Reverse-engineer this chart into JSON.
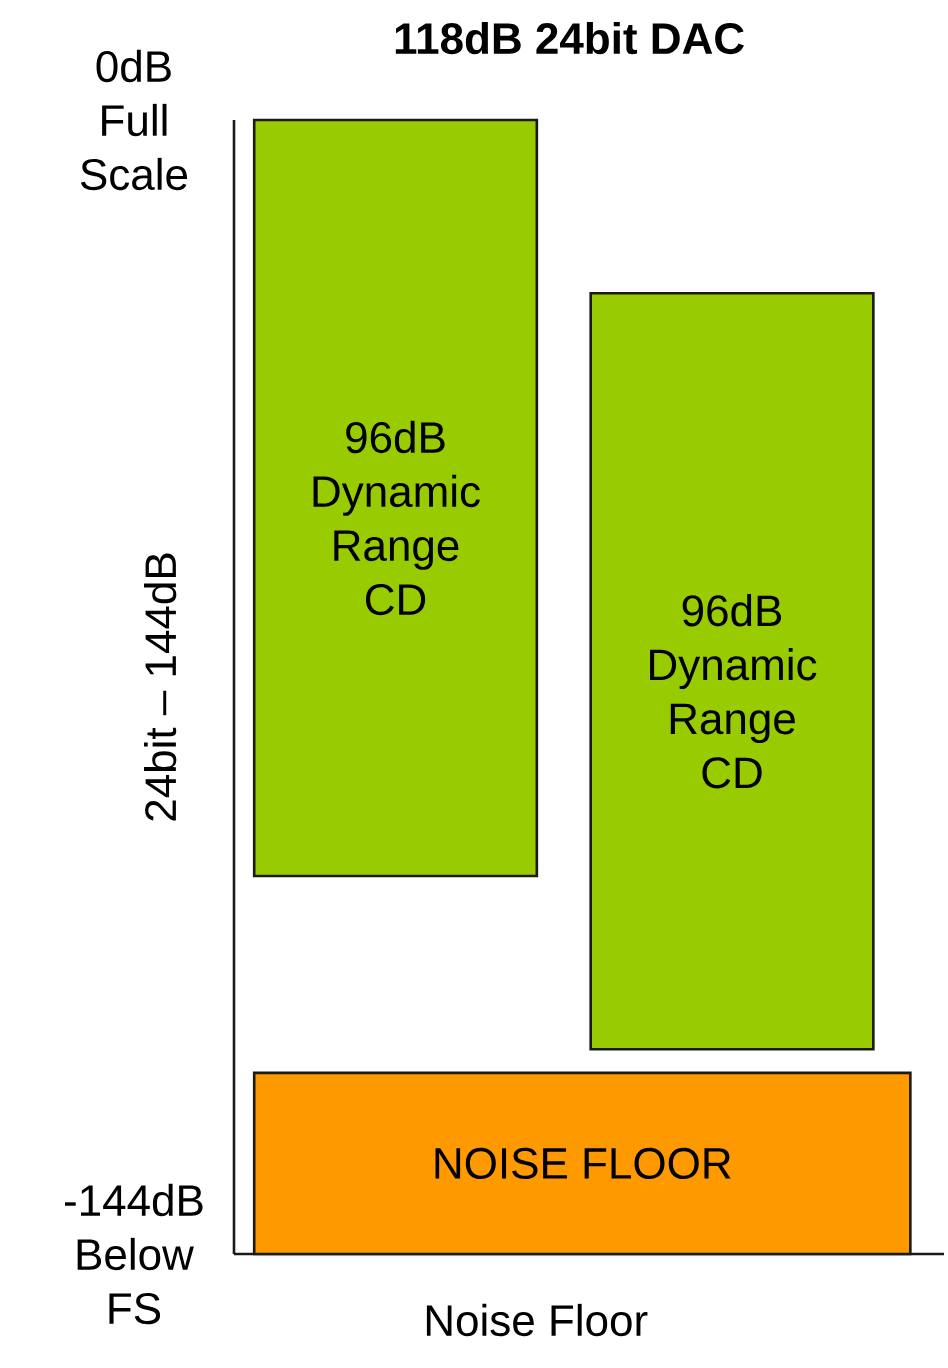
{
  "chart_data": {
    "type": "bar",
    "title": "118dB 24bit DAC",
    "xlabel": "Noise Floor",
    "ylabel": "24bit – 144dB",
    "categories": [
      null,
      null
    ],
    "base": [
      -96,
      -118
    ],
    "values": [
      96,
      96
    ],
    "color": "#99cc00",
    "value_labels": [
      "96dB Dynamic Range CD",
      "96dB Dynamic Range CD"
    ],
    "ylim": [
      -144,
      0
    ],
    "yticks": [
      {
        "value": 0,
        "label": "0dB Full Scale"
      },
      {
        "value": -144,
        "label": "-144dB Below FS"
      }
    ],
    "bands": [
      {
        "axis": "y",
        "from": -144,
        "to": -121,
        "label": "NOISE FLOOR",
        "color": "#ff9900"
      }
    ]
  }
}
